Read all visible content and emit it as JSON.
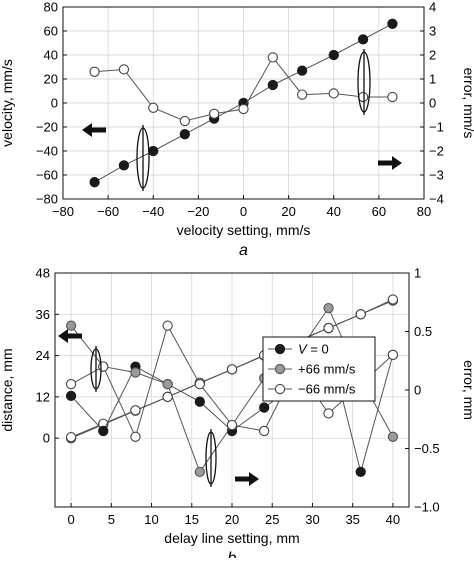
{
  "chart_data": [
    {
      "panel_label": "a",
      "type": "line",
      "xlabel": "velocity setting, mm/s",
      "ylabel_left": "velocity, mm/s",
      "ylabel_right": "error, mm/s",
      "xlim": [
        -80,
        80
      ],
      "ylim_left": [
        -80,
        80
      ],
      "ylim_right": [
        -4,
        4
      ],
      "x_ticks": [
        -80,
        -60,
        -40,
        -20,
        0,
        20,
        40,
        60,
        80
      ],
      "y_ticks_left": [
        -80,
        -60,
        -40,
        -20,
        0,
        20,
        40,
        60,
        80
      ],
      "y_ticks_right": [
        -4,
        -3,
        -2,
        -1,
        0,
        1,
        2,
        3,
        4
      ],
      "grid": true,
      "series": [
        {
          "axis": "left",
          "marker": "filled-black",
          "x": [
            -66,
            -53,
            -40,
            -26,
            -13,
            0,
            13,
            26,
            40,
            53,
            66
          ],
          "y": [
            -66,
            -52,
            -40,
            -26,
            -13,
            0,
            15,
            27,
            40,
            53,
            66
          ]
        },
        {
          "axis": "right",
          "marker": "open-white",
          "x": [
            -66,
            -53,
            -40,
            -26,
            -13,
            0,
            13,
            26,
            40,
            53,
            66
          ],
          "y": [
            1.3,
            1.4,
            -0.2,
            -0.75,
            -0.45,
            -0.25,
            1.9,
            0.35,
            0.4,
            0.25,
            0.25
          ]
        }
      ]
    },
    {
      "panel_label": "b",
      "type": "line",
      "xlabel": "delay line setting, mm",
      "ylabel_left": "distance, mm",
      "ylabel_right": "error, mm",
      "xlim": [
        -2,
        42
      ],
      "ylim_left": [
        -20,
        48
      ],
      "ylim_right": [
        -1,
        1
      ],
      "x_ticks": [
        0,
        5,
        10,
        15,
        20,
        25,
        30,
        35,
        40
      ],
      "y_ticks_left": [
        0,
        12,
        24,
        36,
        48
      ],
      "y_ticks_right": [
        -1.0,
        -0.5,
        0,
        0.5,
        1
      ],
      "y_tick_labels_right": [
        "−1.0",
        "−0.5",
        "0",
        "0.5",
        "1"
      ],
      "grid": true,
      "legend": {
        "placement": "center-right",
        "entries": [
          {
            "label_prefix": "V",
            "label_suffix": " = 0",
            "marker": "filled-black"
          },
          {
            "label": "+66 mm/s",
            "marker": "filled-gray"
          },
          {
            "label": "−66 mm/s",
            "marker": "open-white"
          }
        ]
      },
      "series": [
        {
          "id": "dist_black",
          "axis": "left",
          "marker": "filled-black",
          "x": [
            0,
            4,
            8,
            12,
            16,
            20,
            24,
            28,
            32,
            36,
            40
          ],
          "y": [
            0,
            4,
            8,
            12,
            16,
            20,
            24,
            28,
            32,
            36,
            40
          ]
        },
        {
          "id": "dist_gray",
          "axis": "left",
          "marker": "filled-gray",
          "x": [
            0,
            4,
            8,
            12,
            16,
            20,
            24,
            28,
            32,
            36,
            40
          ],
          "y": [
            0,
            4,
            8,
            12,
            16,
            20,
            24,
            28,
            32,
            36,
            40
          ]
        },
        {
          "id": "dist_open",
          "axis": "left",
          "marker": "open-white",
          "x": [
            0,
            4,
            8,
            12,
            16,
            20,
            24,
            28,
            32,
            36,
            40
          ],
          "y": [
            0.3,
            4.2,
            8.1,
            12.0,
            16.1,
            20.0,
            24.1,
            28.1,
            32.0,
            36.0,
            40.3
          ]
        },
        {
          "id": "err_black",
          "axis": "right",
          "marker": "filled-black",
          "x": [
            0,
            4,
            8,
            12,
            16,
            20,
            24,
            28,
            32,
            36,
            40
          ],
          "y": [
            -0.05,
            -0.35,
            0.2,
            0.05,
            -0.1,
            -0.35,
            -0.15,
            0.05,
            0.4,
            -0.7,
            0.3
          ]
        },
        {
          "id": "err_gray",
          "axis": "right",
          "marker": "filled-gray",
          "x": [
            0,
            4,
            8,
            12,
            16,
            20,
            24,
            28,
            32,
            36,
            40
          ],
          "y": [
            0.55,
            0.2,
            0.15,
            0.05,
            -0.7,
            -0.3,
            0.1,
            0.3,
            0.7,
            0.1,
            -0.4
          ]
        },
        {
          "id": "err_open",
          "axis": "right",
          "marker": "open-white",
          "x": [
            0,
            4,
            8,
            12,
            16,
            20,
            24,
            28,
            32,
            36,
            40
          ],
          "y": [
            0.05,
            0.2,
            -0.4,
            0.55,
            0.05,
            -0.3,
            -0.35,
            0.2,
            -0.2,
            0.05,
            0.3
          ]
        }
      ]
    }
  ]
}
